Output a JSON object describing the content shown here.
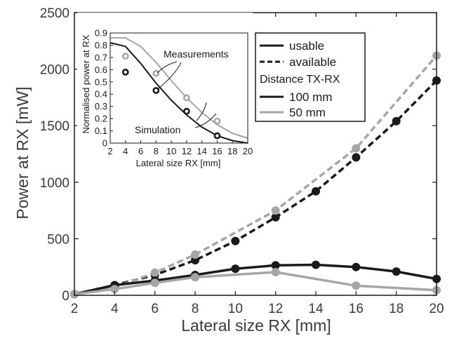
{
  "chart_data": [
    {
      "type": "line",
      "xlabel": "Lateral size RX [mm]",
      "ylabel": "Power at RX [mW]",
      "xlim": [
        2,
        20
      ],
      "ylim": [
        0,
        2500
      ],
      "xticks": [
        2,
        4,
        6,
        8,
        10,
        12,
        14,
        16,
        18,
        20
      ],
      "yticks": [
        0,
        500,
        1000,
        1500,
        2000,
        2500
      ],
      "legend": {
        "placement": "top-right",
        "style_entries": [
          "usable",
          "available"
        ],
        "distance_title": "Distance TX-RX",
        "distance_entries": [
          "100 mm",
          "50 mm"
        ]
      },
      "colors": {
        "dist_100mm": "#1a1a1a",
        "dist_50mm": "#a6a6a6"
      },
      "series": [
        {
          "distance": "100 mm",
          "kind": "available",
          "x": [
            2,
            4,
            6,
            8,
            10,
            12,
            14,
            16,
            18,
            20
          ],
          "y": [
            10,
            90,
            180,
            310,
            480,
            690,
            920,
            1220,
            1540,
            1900
          ]
        },
        {
          "distance": "50 mm",
          "kind": "available",
          "x": [
            2,
            4,
            6,
            8,
            12,
            16,
            20
          ],
          "y": [
            10,
            70,
            200,
            360,
            750,
            1300,
            2120
          ]
        },
        {
          "distance": "100 mm",
          "kind": "usable",
          "x": [
            2,
            4,
            6,
            8,
            10,
            12,
            14,
            16,
            18,
            20
          ],
          "y": [
            10,
            90,
            130,
            180,
            235,
            265,
            270,
            250,
            210,
            145
          ]
        },
        {
          "distance": "50 mm",
          "kind": "usable",
          "x": [
            2,
            4,
            6,
            8,
            12,
            16,
            20
          ],
          "y": [
            10,
            55,
            110,
            160,
            205,
            85,
            45
          ]
        }
      ]
    },
    {
      "type": "line",
      "placement": "inset top-left",
      "xlabel": "Lateral size RX [mm]",
      "ylabel": "Normalised power at RX",
      "xlim": [
        2,
        20
      ],
      "ylim": [
        0,
        0.9
      ],
      "xticks": [
        2,
        4,
        6,
        8,
        10,
        12,
        14,
        16,
        18,
        20
      ],
      "yticks": [
        0,
        0.1,
        0.2,
        0.3,
        0.4,
        0.5,
        0.6,
        0.7,
        0.8,
        0.9
      ],
      "annotations": [
        "Measurements",
        "Simulation"
      ],
      "simulation": [
        {
          "distance": "50 mm",
          "x": [
            2,
            4,
            6,
            8,
            10,
            12,
            14,
            16,
            18,
            20
          ],
          "y": [
            0.86,
            0.86,
            0.79,
            0.66,
            0.51,
            0.37,
            0.25,
            0.15,
            0.08,
            0.04
          ]
        },
        {
          "distance": "100 mm",
          "x": [
            2,
            4,
            6,
            8,
            10,
            12,
            14,
            16,
            18,
            20
          ],
          "y": [
            0.82,
            0.79,
            0.65,
            0.49,
            0.35,
            0.23,
            0.13,
            0.06,
            0.02,
            0.0
          ]
        }
      ],
      "measurements": [
        {
          "distance": "50 mm",
          "x": [
            4,
            8,
            12,
            16
          ],
          "y": [
            0.71,
            0.57,
            0.37,
            0.18
          ]
        },
        {
          "distance": "100 mm",
          "x": [
            4,
            8,
            12,
            16
          ],
          "y": [
            0.58,
            0.43,
            0.26,
            0.06
          ]
        }
      ]
    }
  ]
}
